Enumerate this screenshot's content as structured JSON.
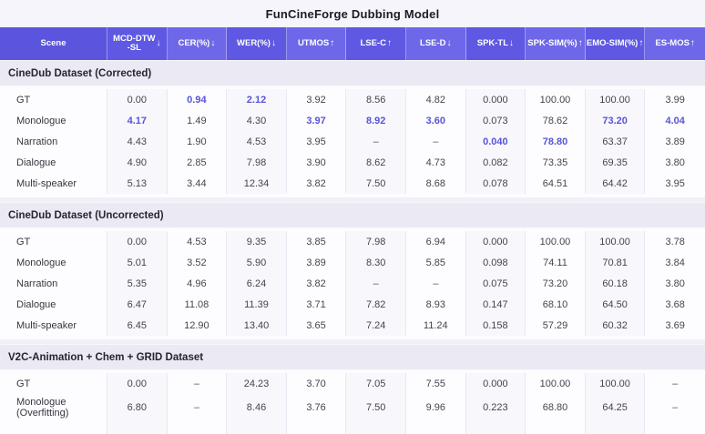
{
  "title": "FunCineForge Dubbing Model",
  "colors": {
    "header_purple": "#5e58e2",
    "header_purple_light": "#6e68e9",
    "highlight_purple": "#5655d6",
    "section_band": "#ebeaf4",
    "body_background": "#fdfdff",
    "page_background": "#f1f0f8"
  },
  "chart_data": {
    "type": "table",
    "title": "FunCineForge Dubbing Model",
    "columns": [
      {
        "label": "Scene",
        "label2": "",
        "arrow": ""
      },
      {
        "label": "MCD-DTW",
        "label2": "-SL",
        "arrow": "↓"
      },
      {
        "label": "CER(%)",
        "label2": "",
        "arrow": "↓"
      },
      {
        "label": "WER(%)",
        "label2": "",
        "arrow": "↓"
      },
      {
        "label": "UTMOS",
        "label2": "",
        "arrow": "↑"
      },
      {
        "label": "LSE-C",
        "label2": "",
        "arrow": "↑"
      },
      {
        "label": "LSE-D",
        "label2": "",
        "arrow": "↓"
      },
      {
        "label": "SPK-TL",
        "label2": "",
        "arrow": "↓"
      },
      {
        "label": "SPK-SIM(%)",
        "label2": "",
        "arrow": "↑"
      },
      {
        "label": "EMO-SIM(%)",
        "label2": "",
        "arrow": "↑"
      },
      {
        "label": "ES-MOS",
        "label2": "",
        "arrow": "↑"
      }
    ],
    "sections": [
      {
        "heading": "CineDub Dataset (Corrected)",
        "rows": [
          {
            "scene": "GT",
            "values": [
              "0.00",
              "0.94",
              "2.12",
              "3.92",
              "8.56",
              "4.82",
              "0.000",
              "100.00",
              "100.00",
              "3.99"
            ],
            "highlight": [
              1,
              2
            ]
          },
          {
            "scene": "Monologue",
            "values": [
              "4.17",
              "1.49",
              "4.30",
              "3.97",
              "8.92",
              "3.60",
              "0.073",
              "78.62",
              "73.20",
              "4.04"
            ],
            "highlight": [
              0,
              3,
              4,
              5,
              8,
              9
            ]
          },
          {
            "scene": "Narration",
            "values": [
              "4.43",
              "1.90",
              "4.53",
              "3.95",
              "–",
              "–",
              "0.040",
              "78.80",
              "63.37",
              "3.89"
            ],
            "highlight": [
              6,
              7
            ]
          },
          {
            "scene": "Dialogue",
            "values": [
              "4.90",
              "2.85",
              "7.98",
              "3.90",
              "8.62",
              "4.73",
              "0.082",
              "73.35",
              "69.35",
              "3.80"
            ],
            "highlight": []
          },
          {
            "scene": "Multi-speaker",
            "values": [
              "5.13",
              "3.44",
              "12.34",
              "3.82",
              "7.50",
              "8.68",
              "0.078",
              "64.51",
              "64.42",
              "3.95"
            ],
            "highlight": []
          }
        ]
      },
      {
        "heading": "CineDub Dataset (Uncorrected)",
        "rows": [
          {
            "scene": "GT",
            "values": [
              "0.00",
              "4.53",
              "9.35",
              "3.85",
              "7.98",
              "6.94",
              "0.000",
              "100.00",
              "100.00",
              "3.78"
            ],
            "highlight": []
          },
          {
            "scene": "Monologue",
            "values": [
              "5.01",
              "3.52",
              "5.90",
              "3.89",
              "8.30",
              "5.85",
              "0.098",
              "74.11",
              "70.81",
              "3.84"
            ],
            "highlight": []
          },
          {
            "scene": "Narration",
            "values": [
              "5.35",
              "4.96",
              "6.24",
              "3.82",
              "–",
              "–",
              "0.075",
              "73.20",
              "60.18",
              "3.80"
            ],
            "highlight": []
          },
          {
            "scene": "Dialogue",
            "values": [
              "6.47",
              "11.08",
              "11.39",
              "3.71",
              "7.82",
              "8.93",
              "0.147",
              "68.10",
              "64.50",
              "3.68"
            ],
            "highlight": []
          },
          {
            "scene": "Multi-speaker",
            "values": [
              "6.45",
              "12.90",
              "13.40",
              "3.65",
              "7.24",
              "11.24",
              "0.158",
              "57.29",
              "60.32",
              "3.69"
            ],
            "highlight": []
          }
        ]
      },
      {
        "heading": "V2C-Animation + Chem + GRID Dataset",
        "rows": [
          {
            "scene": "GT",
            "values": [
              "0.00",
              "–",
              "24.23",
              "3.70",
              "7.05",
              "7.55",
              "0.000",
              "100.00",
              "100.00",
              "–"
            ],
            "highlight": []
          },
          {
            "scene": "Monologue (Overfitting)",
            "values": [
              "6.80",
              "–",
              "8.46",
              "3.76",
              "7.50",
              "9.96",
              "0.223",
              "68.80",
              "64.25",
              "–"
            ],
            "highlight": []
          }
        ]
      }
    ]
  }
}
